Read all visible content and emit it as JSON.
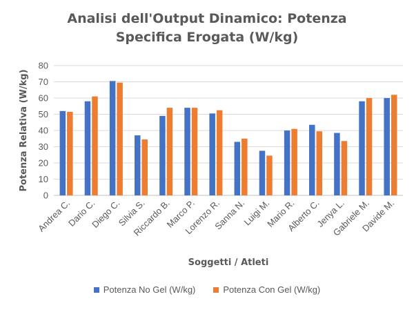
{
  "chart_data": {
    "type": "bar",
    "title_lines": [
      "Analisi dell'Output Dinamico: Potenza",
      "Specifica Erogata (W/kg)"
    ],
    "xlabel": "Soggetti / Atleti",
    "ylabel": "Potenza Relativa (W/kg)",
    "ylim": [
      0,
      80
    ],
    "yticks": [
      0,
      10,
      20,
      30,
      40,
      50,
      60,
      70,
      80
    ],
    "grid": true,
    "legend_position": "bottom",
    "categories": [
      "Andrea C.",
      "Dario C.",
      "Diego C.",
      "Silvia S.",
      "Riccardo B.",
      "Marco P.",
      "Lorenzo R.",
      "Sanna N.",
      "Luigi M.",
      "Mario R.",
      "Alberto C.",
      "Jenya L.",
      "Gabriele M.",
      "Davide M."
    ],
    "series": [
      {
        "name": "Potenza No Gel (W/kg)",
        "color": "#4472C4",
        "values": [
          52,
          58,
          70.5,
          37,
          49,
          54,
          50.5,
          33,
          27.5,
          40,
          43.5,
          38.5,
          58,
          60
        ]
      },
      {
        "name": "Potenza Con Gel (W/kg)",
        "color": "#ED7D31",
        "values": [
          51.5,
          61,
          69.5,
          34.5,
          54,
          54,
          52.5,
          35,
          24.5,
          41,
          39.5,
          33.5,
          60,
          62
        ]
      }
    ]
  }
}
